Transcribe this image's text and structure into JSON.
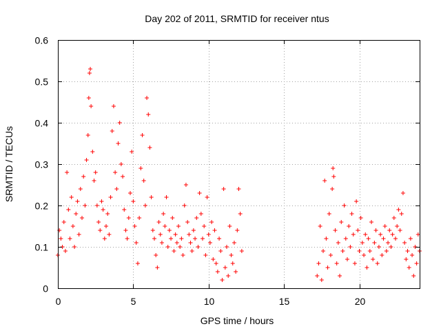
{
  "chart_data": {
    "type": "scatter",
    "title": "Day 202 of 2011, SRMTID for receiver ntus",
    "xlabel": "GPS time / hours",
    "ylabel": "SRMTID / TECUs",
    "xlim": [
      0,
      24
    ],
    "ylim": [
      0,
      0.6
    ],
    "xticks": [
      0,
      5,
      10,
      15,
      20
    ],
    "xtick_labels": [
      "0",
      "5",
      "10",
      "15",
      "20"
    ],
    "yticks": [
      0,
      0.1,
      0.2,
      0.3,
      0.4,
      0.5,
      0.6
    ],
    "ytick_labels": [
      "0",
      "0.1",
      "0.2",
      "0.3",
      "0.4",
      "0.5",
      "0.6"
    ],
    "grid": true,
    "marker": "+",
    "color": "#ff0000",
    "series": [
      {
        "name": "SRMTID",
        "segments": [
          {
            "x_range": [
              0,
              6.3
            ],
            "points": [
              [
                0.0,
                0.08
              ],
              [
                0.1,
                0.14
              ],
              [
                0.2,
                0.12
              ],
              [
                0.3,
                0.1
              ],
              [
                0.4,
                0.16
              ],
              [
                0.5,
                0.09
              ],
              [
                0.6,
                0.28
              ],
              [
                0.7,
                0.19
              ],
              [
                0.8,
                0.12
              ],
              [
                0.9,
                0.22
              ],
              [
                1.0,
                0.15
              ],
              [
                1.1,
                0.1
              ],
              [
                1.2,
                0.18
              ],
              [
                1.3,
                0.21
              ],
              [
                1.4,
                0.13
              ],
              [
                1.5,
                0.24
              ],
              [
                1.6,
                0.17
              ],
              [
                1.7,
                0.27
              ],
              [
                1.8,
                0.2
              ],
              [
                1.9,
                0.31
              ],
              [
                2.0,
                0.37
              ],
              [
                2.05,
                0.46
              ],
              [
                2.1,
                0.52
              ],
              [
                2.15,
                0.53
              ],
              [
                2.2,
                0.44
              ],
              [
                2.3,
                0.33
              ],
              [
                2.4,
                0.26
              ],
              [
                2.5,
                0.28
              ],
              [
                2.6,
                0.2
              ],
              [
                2.7,
                0.16
              ],
              [
                2.8,
                0.14
              ],
              [
                2.9,
                0.21
              ],
              [
                3.0,
                0.19
              ],
              [
                3.1,
                0.12
              ],
              [
                3.2,
                0.15
              ],
              [
                3.3,
                0.18
              ],
              [
                3.4,
                0.13
              ],
              [
                3.5,
                0.22
              ],
              [
                3.6,
                0.38
              ],
              [
                3.7,
                0.44
              ],
              [
                3.8,
                0.28
              ],
              [
                3.9,
                0.24
              ],
              [
                4.0,
                0.35
              ],
              [
                4.1,
                0.4
              ],
              [
                4.2,
                0.3
              ],
              [
                4.3,
                0.27
              ],
              [
                4.4,
                0.19
              ],
              [
                4.5,
                0.14
              ],
              [
                4.6,
                0.12
              ],
              [
                4.7,
                0.17
              ],
              [
                4.8,
                0.23
              ],
              [
                4.9,
                0.33
              ],
              [
                5.0,
                0.21
              ],
              [
                5.1,
                0.15
              ],
              [
                5.2,
                0.11
              ],
              [
                5.3,
                0.06
              ],
              [
                5.4,
                0.17
              ],
              [
                5.5,
                0.29
              ],
              [
                5.6,
                0.37
              ],
              [
                5.7,
                0.26
              ],
              [
                5.8,
                0.2
              ],
              [
                5.9,
                0.46
              ],
              [
                6.0,
                0.42
              ],
              [
                6.1,
                0.34
              ],
              [
                6.2,
                0.22
              ]
            ]
          },
          {
            "x_range": [
              6.3,
              12.2
            ],
            "points": [
              [
                6.3,
                0.14
              ],
              [
                6.4,
                0.12
              ],
              [
                6.5,
                0.08
              ],
              [
                6.6,
                0.05
              ],
              [
                6.7,
                0.16
              ],
              [
                6.8,
                0.13
              ],
              [
                6.9,
                0.11
              ],
              [
                7.0,
                0.18
              ],
              [
                7.1,
                0.15
              ],
              [
                7.2,
                0.22
              ],
              [
                7.3,
                0.1
              ],
              [
                7.4,
                0.14
              ],
              [
                7.5,
                0.12
              ],
              [
                7.6,
                0.17
              ],
              [
                7.7,
                0.09
              ],
              [
                7.8,
                0.13
              ],
              [
                7.9,
                0.11
              ],
              [
                8.0,
                0.15
              ],
              [
                8.1,
                0.1
              ],
              [
                8.2,
                0.12
              ],
              [
                8.3,
                0.08
              ],
              [
                8.4,
                0.2
              ],
              [
                8.5,
                0.25
              ],
              [
                8.6,
                0.16
              ],
              [
                8.7,
                0.13
              ],
              [
                8.8,
                0.11
              ],
              [
                8.9,
                0.09
              ],
              [
                9.0,
                0.14
              ],
              [
                9.1,
                0.12
              ],
              [
                9.2,
                0.17
              ],
              [
                9.3,
                0.1
              ],
              [
                9.4,
                0.23
              ],
              [
                9.5,
                0.18
              ],
              [
                9.6,
                0.12
              ],
              [
                9.7,
                0.15
              ],
              [
                9.8,
                0.08
              ],
              [
                9.9,
                0.22
              ],
              [
                10.0,
                0.13
              ],
              [
                10.1,
                0.11
              ],
              [
                10.2,
                0.16
              ],
              [
                10.3,
                0.07
              ],
              [
                10.4,
                0.14
              ],
              [
                10.5,
                0.06
              ],
              [
                10.6,
                0.04
              ],
              [
                10.7,
                0.12
              ],
              [
                10.8,
                0.09
              ],
              [
                10.9,
                0.02
              ],
              [
                11.0,
                0.24
              ],
              [
                11.1,
                0.05
              ],
              [
                11.2,
                0.1
              ],
              [
                11.3,
                0.03
              ],
              [
                11.4,
                0.15
              ],
              [
                11.5,
                0.08
              ],
              [
                11.6,
                0.06
              ],
              [
                11.7,
                0.11
              ],
              [
                11.8,
                0.04
              ],
              [
                11.9,
                0.14
              ],
              [
                12.0,
                0.24
              ],
              [
                12.1,
                0.18
              ],
              [
                12.2,
                0.09
              ]
            ]
          },
          {
            "x_range": [
              17.2,
              24.0
            ],
            "points": [
              [
                17.2,
                0.03
              ],
              [
                17.3,
                0.06
              ],
              [
                17.4,
                0.15
              ],
              [
                17.5,
                0.02
              ],
              [
                17.6,
                0.09
              ],
              [
                17.7,
                0.26
              ],
              [
                17.8,
                0.12
              ],
              [
                17.9,
                0.05
              ],
              [
                18.0,
                0.18
              ],
              [
                18.1,
                0.08
              ],
              [
                18.2,
                0.24
              ],
              [
                18.25,
                0.29
              ],
              [
                18.3,
                0.27
              ],
              [
                18.4,
                0.14
              ],
              [
                18.5,
                0.06
              ],
              [
                18.6,
                0.11
              ],
              [
                18.7,
                0.03
              ],
              [
                18.8,
                0.16
              ],
              [
                18.9,
                0.09
              ],
              [
                19.0,
                0.2
              ],
              [
                19.1,
                0.12
              ],
              [
                19.2,
                0.07
              ],
              [
                19.3,
                0.15
              ],
              [
                19.4,
                0.1
              ],
              [
                19.5,
                0.18
              ],
              [
                19.6,
                0.13
              ],
              [
                19.7,
                0.06
              ],
              [
                19.8,
                0.21
              ],
              [
                19.9,
                0.14
              ],
              [
                20.0,
                0.09
              ],
              [
                20.1,
                0.17
              ],
              [
                20.2,
                0.11
              ],
              [
                20.3,
                0.08
              ],
              [
                20.4,
                0.13
              ],
              [
                20.5,
                0.05
              ],
              [
                20.6,
                0.12
              ],
              [
                20.7,
                0.09
              ],
              [
                20.8,
                0.16
              ],
              [
                20.9,
                0.07
              ],
              [
                21.0,
                0.11
              ],
              [
                21.1,
                0.14
              ],
              [
                21.2,
                0.06
              ],
              [
                21.3,
                0.1
              ],
              [
                21.4,
                0.13
              ],
              [
                21.5,
                0.08
              ],
              [
                21.6,
                0.12
              ],
              [
                21.7,
                0.15
              ],
              [
                21.8,
                0.09
              ],
              [
                21.9,
                0.11
              ],
              [
                22.0,
                0.14
              ],
              [
                22.1,
                0.1
              ],
              [
                22.2,
                0.13
              ],
              [
                22.3,
                0.17
              ],
              [
                22.4,
                0.12
              ],
              [
                22.5,
                0.15
              ],
              [
                22.6,
                0.19
              ],
              [
                22.7,
                0.14
              ],
              [
                22.8,
                0.18
              ],
              [
                22.9,
                0.23
              ],
              [
                23.0,
                0.11
              ],
              [
                23.1,
                0.07
              ],
              [
                23.2,
                0.09
              ],
              [
                23.3,
                0.05
              ],
              [
                23.4,
                0.12
              ],
              [
                23.5,
                0.08
              ],
              [
                23.6,
                0.03
              ],
              [
                23.7,
                0.1
              ],
              [
                23.8,
                0.06
              ],
              [
                23.9,
                0.13
              ],
              [
                24.0,
                0.09
              ]
            ]
          }
        ]
      }
    ]
  }
}
